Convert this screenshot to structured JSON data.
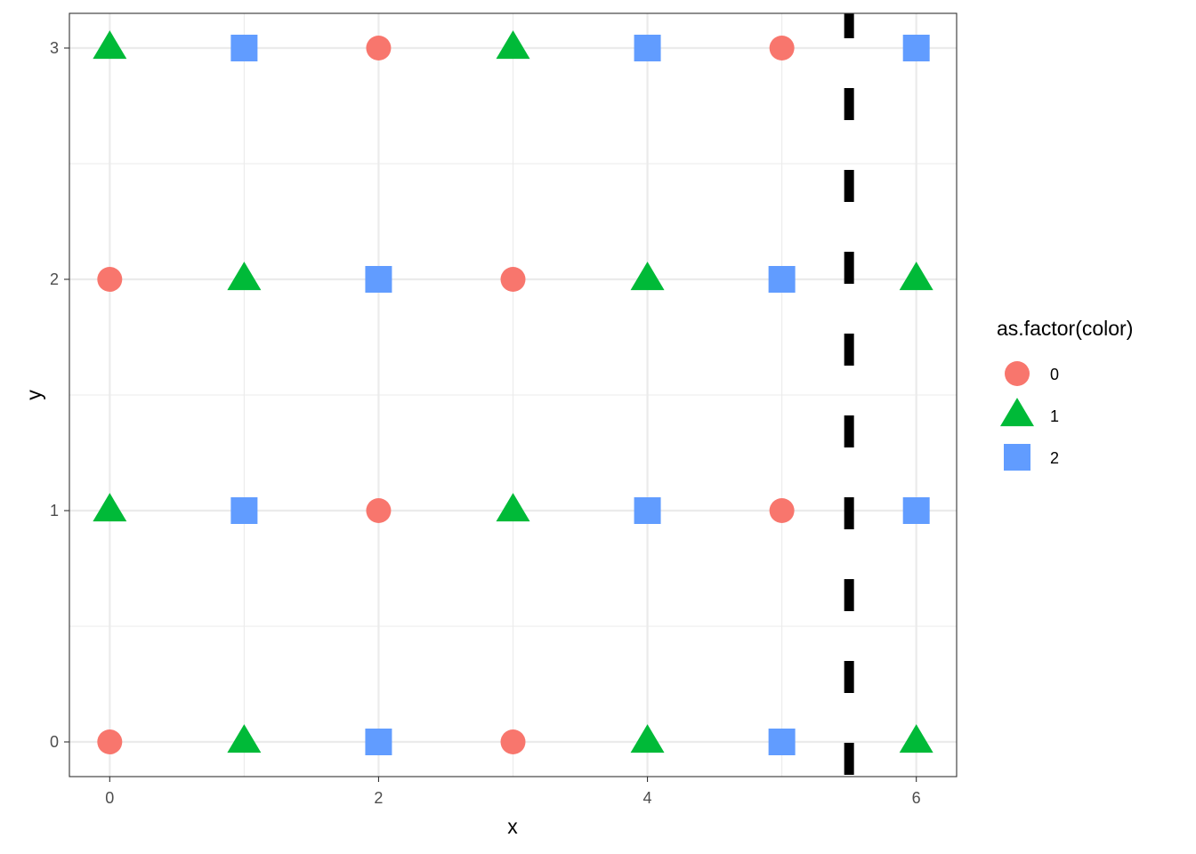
{
  "chart_data": {
    "type": "scatter",
    "xlabel": "x",
    "ylabel": "y",
    "xlim": [
      -0.3,
      6.3
    ],
    "ylim": [
      -0.15,
      3.15
    ],
    "x_ticks": [
      0,
      2,
      4,
      6
    ],
    "y_ticks": [
      0,
      1,
      2,
      3
    ],
    "x_tick_labels": [
      "0",
      "2",
      "4",
      "6"
    ],
    "y_tick_labels": [
      "0",
      "1",
      "2",
      "3"
    ],
    "grid": true,
    "legend": {
      "title": "as.factor(color)",
      "placement": "right",
      "entries": [
        {
          "label": "0",
          "shape": "circle",
          "color": "#F8766D"
        },
        {
          "label": "1",
          "shape": "triangle",
          "color": "#00BA38"
        },
        {
          "label": "2",
          "shape": "square",
          "color": "#619CFF"
        }
      ]
    },
    "vline": {
      "x": 5.5,
      "style": "dashed",
      "color": "#000000"
    },
    "points": [
      {
        "x": 0,
        "y": 0,
        "color": 0
      },
      {
        "x": 1,
        "y": 0,
        "color": 1
      },
      {
        "x": 2,
        "y": 0,
        "color": 2
      },
      {
        "x": 3,
        "y": 0,
        "color": 0
      },
      {
        "x": 4,
        "y": 0,
        "color": 1
      },
      {
        "x": 5,
        "y": 0,
        "color": 2
      },
      {
        "x": 6,
        "y": 0,
        "color": 1
      },
      {
        "x": 0,
        "y": 1,
        "color": 1
      },
      {
        "x": 1,
        "y": 1,
        "color": 2
      },
      {
        "x": 2,
        "y": 1,
        "color": 0
      },
      {
        "x": 3,
        "y": 1,
        "color": 1
      },
      {
        "x": 4,
        "y": 1,
        "color": 2
      },
      {
        "x": 5,
        "y": 1,
        "color": 0
      },
      {
        "x": 6,
        "y": 1,
        "color": 2
      },
      {
        "x": 0,
        "y": 2,
        "color": 0
      },
      {
        "x": 1,
        "y": 2,
        "color": 1
      },
      {
        "x": 2,
        "y": 2,
        "color": 2
      },
      {
        "x": 3,
        "y": 2,
        "color": 0
      },
      {
        "x": 4,
        "y": 2,
        "color": 1
      },
      {
        "x": 5,
        "y": 2,
        "color": 2
      },
      {
        "x": 6,
        "y": 2,
        "color": 1
      },
      {
        "x": 0,
        "y": 3,
        "color": 1
      },
      {
        "x": 1,
        "y": 3,
        "color": 2
      },
      {
        "x": 2,
        "y": 3,
        "color": 0
      },
      {
        "x": 3,
        "y": 3,
        "color": 1
      },
      {
        "x": 4,
        "y": 3,
        "color": 2
      },
      {
        "x": 5,
        "y": 3,
        "color": 0
      },
      {
        "x": 6,
        "y": 3,
        "color": 2
      }
    ]
  }
}
